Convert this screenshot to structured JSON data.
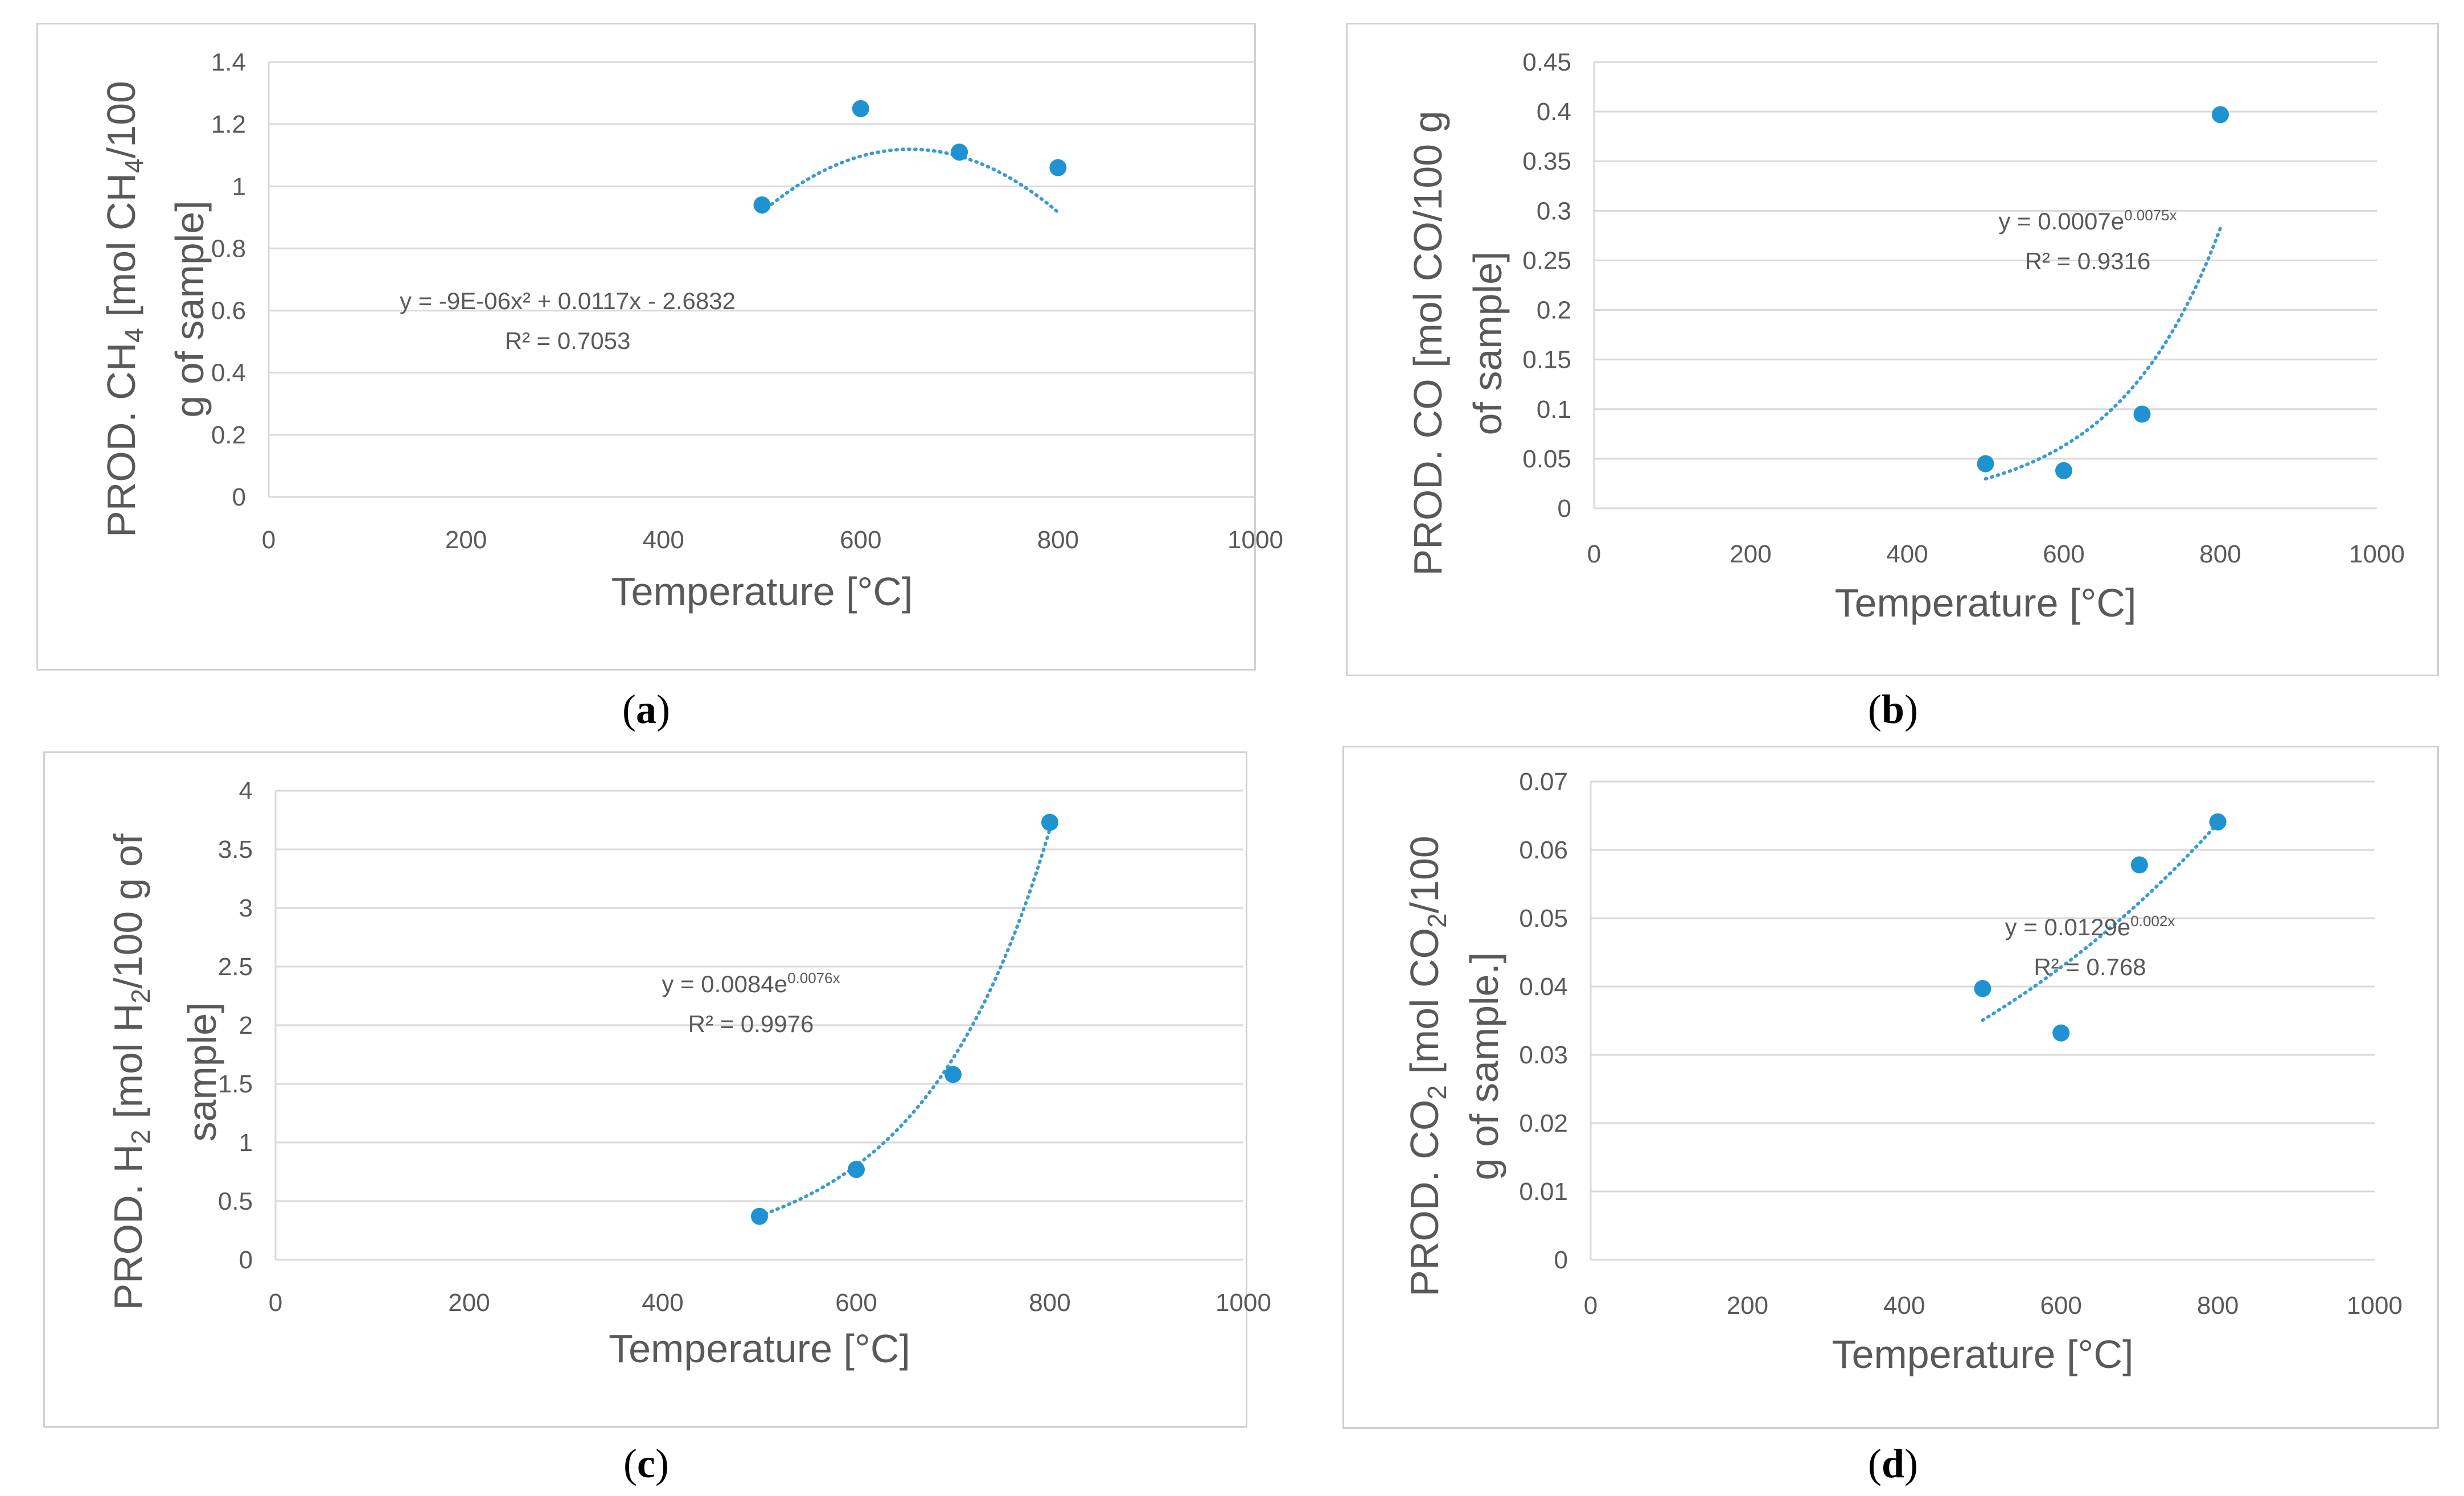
{
  "colors": {
    "marker": "#1f93d1",
    "trendline": "#3a9bd5",
    "grid": "#d9d9d9",
    "text": "#595959"
  },
  "chart_data": [
    {
      "type": "scatter",
      "panel": "a",
      "caption_letter": "a",
      "xlabel": "Temperature [°C]",
      "ylabel_line1": {
        "pre": "PROD. CH",
        "sub": "4",
        "mid": " [mol CH",
        "sub2": "4",
        "post": "/100"
      },
      "ylabel_line2": "g of sample]",
      "xlim": [
        0,
        1000
      ],
      "ylim": [
        0,
        1.4
      ],
      "xticks": [
        0,
        200,
        400,
        600,
        800,
        1000
      ],
      "yticks": [
        0,
        0.2,
        0.4,
        0.6,
        0.8,
        1,
        1.2,
        1.4
      ],
      "x": [
        500,
        600,
        700,
        800
      ],
      "y": [
        0.94,
        1.25,
        1.11,
        1.06
      ],
      "trendline": {
        "kind": "poly2",
        "coef": [
          -9e-06,
          0.0117,
          -2.6832
        ],
        "x_from": 500,
        "x_to": 800
      },
      "equation": "y = -9E-06x² + 0.0117x - 2.6832",
      "r2": "R² = 0.7053"
    },
    {
      "type": "scatter",
      "panel": "b",
      "caption_letter": "b",
      "xlabel": "Temperature [°C]",
      "ylabel_line1": {
        "pre": "PROD. CO [mol CO/100 g",
        "sub": "",
        "mid": "",
        "sub2": "",
        "post": ""
      },
      "ylabel_line2": "of sample]",
      "xlim": [
        0,
        1000
      ],
      "ylim": [
        0,
        0.45
      ],
      "xticks": [
        0,
        200,
        400,
        600,
        800,
        1000
      ],
      "yticks": [
        0,
        0.05,
        0.1,
        0.15,
        0.2,
        0.25,
        0.3,
        0.35,
        0.4,
        0.45
      ],
      "x": [
        500,
        600,
        700,
        800
      ],
      "y": [
        0.045,
        0.038,
        0.095,
        0.397
      ],
      "trendline": {
        "kind": "exp",
        "a": 0.0007,
        "b": 0.0075,
        "x_from": 500,
        "x_to": 800
      },
      "equation_base": "y = 0.0007e",
      "equation_exp": "0.0075x",
      "r2": "R² = 0.9316"
    },
    {
      "type": "scatter",
      "panel": "c",
      "caption_letter": "c",
      "xlabel": "Temperature [°C]",
      "ylabel_line1": {
        "pre": "PROD. H",
        "sub": "2",
        "mid": " [mol H",
        "sub2": "2",
        "post": "/100 g of"
      },
      "ylabel_line2": "sample]",
      "xlim": [
        0,
        1000
      ],
      "ylim": [
        0,
        4
      ],
      "xticks": [
        0,
        200,
        400,
        600,
        800,
        1000
      ],
      "yticks": [
        0,
        0.5,
        1,
        1.5,
        2,
        2.5,
        3,
        3.5,
        4
      ],
      "x": [
        500,
        600,
        700,
        800
      ],
      "y": [
        0.37,
        0.77,
        1.58,
        3.73
      ],
      "trendline": {
        "kind": "exp",
        "a": 0.0084,
        "b": 0.0076,
        "x_from": 500,
        "x_to": 800
      },
      "equation_base": "y = 0.0084e",
      "equation_exp": "0.0076x",
      "r2": "R² = 0.9976"
    },
    {
      "type": "scatter",
      "panel": "d",
      "caption_letter": "d",
      "xlabel": "Temperature [°C]",
      "ylabel_line1": {
        "pre": "PROD. CO",
        "sub": "2",
        "mid": " [mol CO",
        "sub2": "2",
        "post": "/100"
      },
      "ylabel_line2": "g of sample.]",
      "xlim": [
        0,
        1000
      ],
      "ylim": [
        0,
        0.07
      ],
      "xticks": [
        0,
        200,
        400,
        600,
        800,
        1000
      ],
      "yticks": [
        0,
        0.01,
        0.02,
        0.03,
        0.04,
        0.05,
        0.06,
        0.07
      ],
      "x": [
        500,
        600,
        700,
        800
      ],
      "y": [
        0.0397,
        0.0332,
        0.0578,
        0.0641
      ],
      "trendline": {
        "kind": "exp",
        "a": 0.0129,
        "b": 0.002,
        "x_from": 500,
        "x_to": 800
      },
      "equation_base": "y = 0.0129e",
      "equation_exp": "0.002x",
      "r2": "R² = 0.768"
    }
  ]
}
